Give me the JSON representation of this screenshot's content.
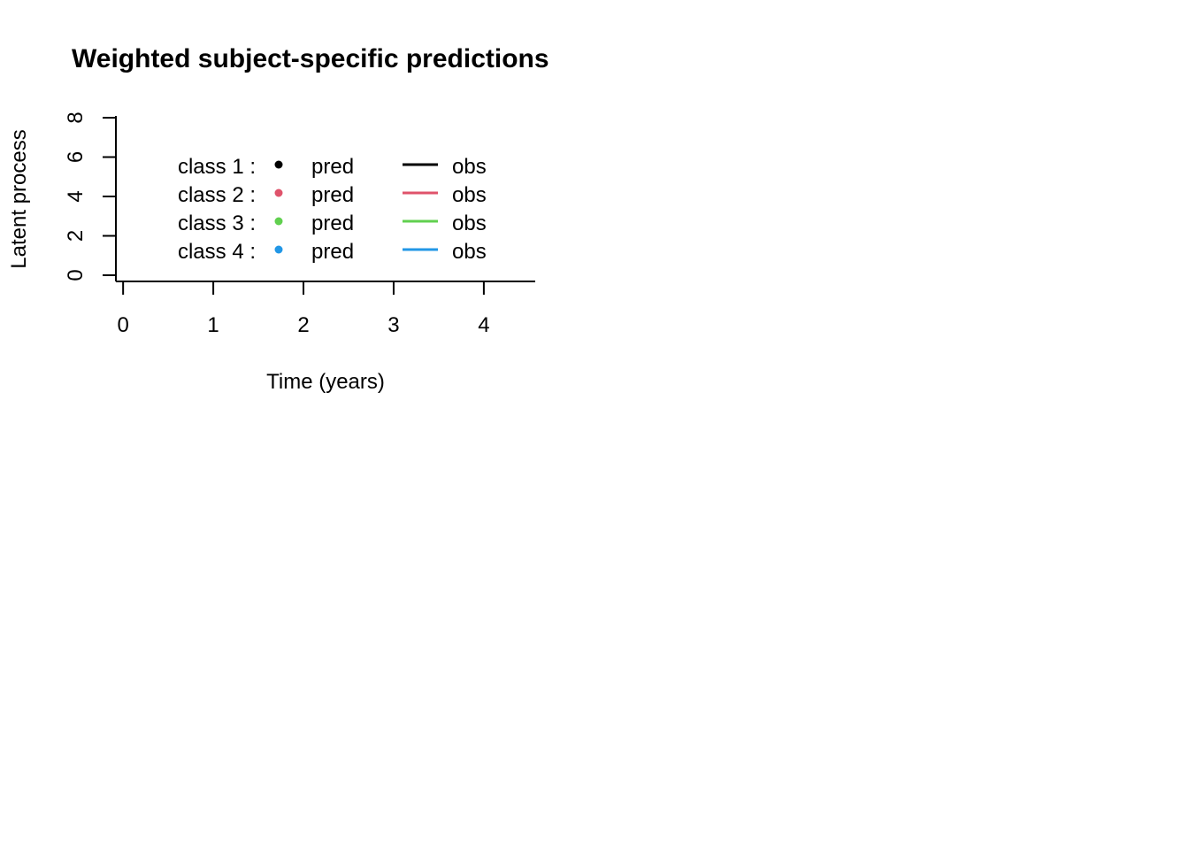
{
  "chart_data": {
    "type": "line",
    "title": "Weighted subject-specific predictions",
    "xlabel": "Time (years)",
    "ylabel": "Latent process",
    "xlim": [
      -0.08,
      4.57
    ],
    "ylim": [
      0,
      8
    ],
    "x_ticks": [
      "0",
      "1",
      "2",
      "3",
      "4"
    ],
    "y_ticks": [
      "0",
      "2",
      "4",
      "6",
      "8"
    ],
    "grid": false,
    "legend": {
      "placement": "top-left inside",
      "entries": [
        {
          "class_label": "class 1 :",
          "pred_label": "pred",
          "obs_label": "obs",
          "color": "#000000"
        },
        {
          "class_label": "class 2 :",
          "pred_label": "pred",
          "obs_label": "obs",
          "color": "#DF536B"
        },
        {
          "class_label": "class 3 :",
          "pred_label": "pred",
          "obs_label": "obs",
          "color": "#61D04F"
        },
        {
          "class_label": "class 4 :",
          "pred_label": "pred",
          "obs_label": "obs",
          "color": "#2297E6"
        }
      ]
    },
    "series": []
  }
}
